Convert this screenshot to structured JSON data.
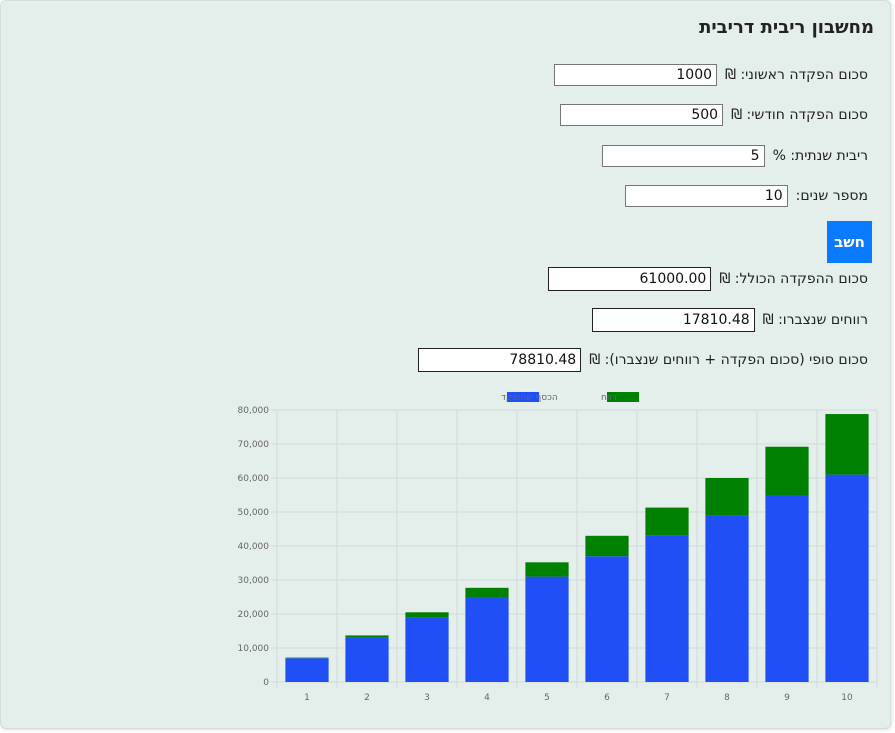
{
  "calculator": {
    "title": "מחשבון ריבית דריבית",
    "initial_deposit": {
      "label": "סכום הפקדה ראשוני: ₪",
      "value": "1000"
    },
    "monthly_deposit": {
      "label": "סכום הפקדה חודשי: ₪",
      "value": "500"
    },
    "annual_rate": {
      "label": "ריבית שנתית: %",
      "value": "5"
    },
    "years": {
      "label": "מספר שנים:",
      "value": "10"
    },
    "calculate_label": "חשב",
    "total_deposit": {
      "label": "סכום ההפקדה הכולל: ₪",
      "value": "61000.00"
    },
    "profit": {
      "label": "רווחים שנצברו: ₪",
      "value": "17810.48"
    },
    "final_amount": {
      "label": "סכום סופי (סכום הפקדה + רווחים שנצברו): ₪",
      "value": "78810.48"
    }
  },
  "chart_data": {
    "type": "bar",
    "stacked": true,
    "categories": [
      "1",
      "2",
      "3",
      "4",
      "5",
      "6",
      "7",
      "8",
      "9",
      "10"
    ],
    "series": [
      {
        "name": "הכסף שהופקד",
        "color": "#1f4ff5",
        "values": [
          7000,
          13000,
          19000,
          25000,
          31000,
          37000,
          43000,
          49000,
          55000,
          61000
        ]
      },
      {
        "name": "רווח",
        "color": "#008000",
        "values": [
          180,
          700,
          1500,
          2700,
          4200,
          6000,
          8300,
          11000,
          14200,
          17810
        ]
      }
    ],
    "ylim": [
      0,
      80000
    ],
    "yticks": [
      "0",
      "10,000",
      "20,000",
      "30,000",
      "40,000",
      "50,000",
      "60,000",
      "70,000",
      "80,000"
    ],
    "legend_position": "top",
    "grid": true
  }
}
